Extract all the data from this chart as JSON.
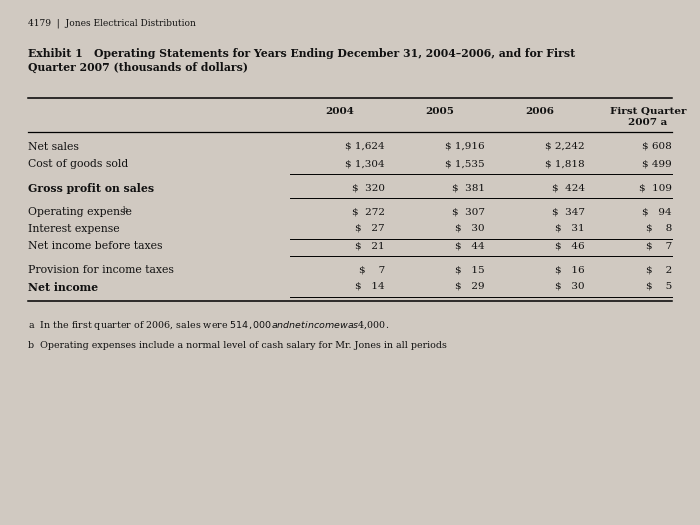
{
  "header": "4179  |  Jones Electrical Distribution",
  "title1": "Exhibit 1   Operating Statements for Years Ending December 31, 2004–2006, and for First",
  "title2": "Quarter 2007 (thousands of dollars)",
  "col_headers": [
    "2004",
    "2005",
    "2006",
    "First Quarter\n2007 a"
  ],
  "rows": [
    {
      "label": "Net sales",
      "vals": [
        "$ 1,624",
        "$ 1,916",
        "$ 2,242",
        "$ 608"
      ],
      "bold": false,
      "ul": false,
      "gap_before": false
    },
    {
      "label": "Cost of goods sold",
      "vals": [
        "$ 1,304",
        "$ 1,535",
        "$ 1,818",
        "$ 499"
      ],
      "bold": false,
      "ul": true,
      "gap_before": false
    },
    {
      "label": "Gross profit on sales",
      "vals": [
        "$  320",
        "$  381",
        "$  424",
        "$  109"
      ],
      "bold": true,
      "ul": true,
      "gap_before": true
    },
    {
      "label": "Operating expense b",
      "vals": [
        "$  272",
        "$  307",
        "$  347",
        "$   94"
      ],
      "bold": false,
      "ul": false,
      "gap_before": true
    },
    {
      "label": "Interest expense",
      "vals": [
        "$   27",
        "$   30",
        "$   31",
        "$    8"
      ],
      "bold": false,
      "ul": true,
      "gap_before": false
    },
    {
      "label": "Net income before taxes",
      "vals": [
        "$   21",
        "$   44",
        "$   46",
        "$    7"
      ],
      "bold": false,
      "ul": true,
      "gap_before": false
    },
    {
      "label": "Provision for income taxes",
      "vals": [
        "$    7",
        "$   15",
        "$   16",
        "$    2"
      ],
      "bold": false,
      "ul": false,
      "gap_before": true
    },
    {
      "label": "Net income",
      "vals": [
        "$   14",
        "$   29",
        "$   30",
        "$    5"
      ],
      "bold": true,
      "ul": true,
      "gap_before": false
    }
  ],
  "footnote_a": "a  In the first quarter of 2006, sales were $514,000 and net income was $4,000.",
  "footnote_b": "b  Operating expenses include a normal level of cash salary for Mr. Jones in all periods",
  "bg_color": "#d0c9c1",
  "text_color": "#111111",
  "label_col_b": [
    "Net sales",
    "Cost of goods sold",
    "Interest expense",
    "Net income before taxes",
    "Provision for income taxes"
  ]
}
